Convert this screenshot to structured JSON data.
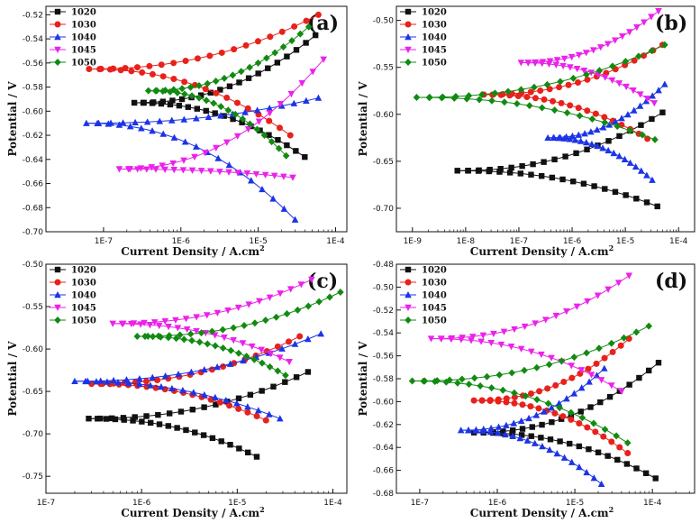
{
  "figure": {
    "series_colors": {
      "1020": "#111111",
      "1030": "#e8211b",
      "1040": "#1c34e6",
      "1045": "#ea22ea",
      "1050": "#128a12"
    },
    "series_markers": {
      "1020": "square",
      "1030": "circle",
      "1040": "triangle-up",
      "1045": "triangle-down",
      "1050": "diamond"
    }
  },
  "chart_data": [
    {
      "panel": "(a)",
      "type": "line",
      "xscale": "log",
      "xlabel": "Current Density / A.cm",
      "xlabel_superscript": "2",
      "ylabel": "Potential / V",
      "xlim": [
        1.8e-08,
        0.00014
      ],
      "ylim": [
        -0.7,
        -0.513
      ],
      "xticks": [
        1e-07,
        1e-06,
        1e-05,
        0.0001
      ],
      "xtick_labels": [
        "1E-7",
        "1E-6",
        "1E-5",
        "1E-4"
      ],
      "yticks": [
        -0.7,
        -0.68,
        -0.66,
        -0.64,
        -0.62,
        -0.6,
        -0.58,
        -0.56,
        -0.54,
        -0.52
      ],
      "ytick_labels": [
        "-0.70",
        "-0.68",
        "-0.66",
        "-0.64",
        "-0.62",
        "-0.60",
        "-0.58",
        "-0.56",
        "-0.54",
        "-0.52"
      ],
      "legend": [
        "1020",
        "1030",
        "1040",
        "1045",
        "1050"
      ],
      "series": [
        {
          "name": "1020",
          "ecorr": -0.593,
          "icorr": 2.5e-07,
          "anodic_end": [
            5.5e-05,
            -0.537
          ],
          "cathodic_end": [
            4e-05,
            -0.638
          ]
        },
        {
          "name": "1030",
          "ecorr": -0.565,
          "icorr": 6.5e-08,
          "anodic_end": [
            6e-05,
            -0.52
          ],
          "cathodic_end": [
            2.6e-05,
            -0.62
          ]
        },
        {
          "name": "1040",
          "ecorr": -0.61,
          "icorr": 6e-08,
          "anodic_end": [
            6e-05,
            -0.589
          ],
          "cathodic_end": [
            3e-05,
            -0.69
          ]
        },
        {
          "name": "1045",
          "ecorr": -0.648,
          "icorr": 1.6e-07,
          "anodic_end": [
            7e-05,
            -0.557
          ],
          "cathodic_end": [
            2.8e-05,
            -0.655
          ]
        },
        {
          "name": "1050",
          "ecorr": -0.583,
          "icorr": 3.8e-07,
          "anodic_end": [
            4.5e-05,
            -0.53
          ],
          "cathodic_end": [
            2.3e-05,
            -0.637
          ]
        }
      ]
    },
    {
      "panel": "(b)",
      "type": "line",
      "xscale": "log",
      "xlabel": "Current Density / A.cm",
      "xlabel_superscript": "2",
      "ylabel": "Potential / V",
      "xlim": [
        5e-10,
        0.0002
      ],
      "ylim": [
        -0.725,
        -0.485
      ],
      "xticks": [
        1e-09,
        1e-08,
        1e-07,
        1e-06,
        1e-05,
        0.0001
      ],
      "xtick_labels": [
        "1E-9",
        "1E-8",
        "1E-7",
        "1E-6",
        "1E-5",
        "1E-4"
      ],
      "yticks": [
        -0.7,
        -0.65,
        -0.6,
        -0.55,
        -0.5
      ],
      "ytick_labels": [
        "-0.70",
        "-0.65",
        "-0.60",
        "-0.55",
        "-0.50"
      ],
      "legend": [
        "1020",
        "1030",
        "1040",
        "1045",
        "1050"
      ],
      "series": [
        {
          "name": "1020",
          "ecorr": -0.66,
          "icorr": 7e-09,
          "anodic_end": [
            5e-05,
            -0.598
          ],
          "cathodic_end": [
            4e-05,
            -0.698
          ]
        },
        {
          "name": "1030",
          "ecorr": -0.579,
          "icorr": 2.2e-08,
          "anodic_end": [
            5e-05,
            -0.526
          ],
          "cathodic_end": [
            2.6e-05,
            -0.626
          ]
        },
        {
          "name": "1040",
          "ecorr": -0.625,
          "icorr": 3.5e-07,
          "anodic_end": [
            5.5e-05,
            -0.568
          ],
          "cathodic_end": [
            3.2e-05,
            -0.67
          ]
        },
        {
          "name": "1045",
          "ecorr": -0.545,
          "icorr": 1.1e-07,
          "anodic_end": [
            4.2e-05,
            -0.49
          ],
          "cathodic_end": [
            3.5e-05,
            -0.588
          ]
        },
        {
          "name": "1050",
          "ecorr": -0.582,
          "icorr": 1.2e-09,
          "anodic_end": [
            5.5e-05,
            -0.526
          ],
          "cathodic_end": [
            3.6e-05,
            -0.627
          ]
        }
      ]
    },
    {
      "panel": "(c)",
      "type": "line",
      "xscale": "log",
      "xlabel": "Current Density / A.cm",
      "xlabel_superscript": "2",
      "ylabel": "Potential / V",
      "xlim": [
        1e-07,
        0.00014
      ],
      "ylim": [
        -0.77,
        -0.5
      ],
      "xticks": [
        1e-07,
        1e-06,
        1e-05,
        0.0001
      ],
      "xtick_labels": [
        "1E-7",
        "1E-6",
        "1E-5",
        "1E-4"
      ],
      "yticks": [
        -0.75,
        -0.7,
        -0.65,
        -0.6,
        -0.55,
        -0.5
      ],
      "ytick_labels": [
        "-0.75",
        "-0.70",
        "-0.65",
        "-0.60",
        "-0.55",
        "-0.50"
      ],
      "legend": [
        "1020",
        "1030",
        "1040",
        "1045",
        "1050"
      ],
      "series": [
        {
          "name": "1020",
          "ecorr": -0.682,
          "icorr": 2.8e-07,
          "anodic_end": [
            5.5e-05,
            -0.627
          ],
          "cathodic_end": [
            1.6e-05,
            -0.727
          ]
        },
        {
          "name": "1030",
          "ecorr": -0.641,
          "icorr": 3e-07,
          "anodic_end": [
            4.5e-05,
            -0.585
          ],
          "cathodic_end": [
            2e-05,
            -0.684
          ]
        },
        {
          "name": "1040",
          "ecorr": -0.638,
          "icorr": 2e-07,
          "anodic_end": [
            7.5e-05,
            -0.582
          ],
          "cathodic_end": [
            2.8e-05,
            -0.682
          ]
        },
        {
          "name": "1045",
          "ecorr": -0.57,
          "icorr": 5e-07,
          "anodic_end": [
            6e-05,
            -0.518
          ],
          "cathodic_end": [
            3.5e-05,
            -0.615
          ]
        },
        {
          "name": "1050",
          "ecorr": -0.585,
          "icorr": 9e-07,
          "anodic_end": [
            0.00012,
            -0.533
          ],
          "cathodic_end": [
            3.2e-05,
            -0.631
          ]
        }
      ]
    },
    {
      "panel": "(d)",
      "type": "line",
      "xscale": "log",
      "xlabel": "Current Density / A.cm",
      "xlabel_superscript": "2",
      "ylabel": "Potential / V",
      "xlim": [
        5e-08,
        0.00035
      ],
      "ylim": [
        -0.68,
        -0.48
      ],
      "xticks": [
        1e-07,
        1e-06,
        1e-05,
        0.0001
      ],
      "xtick_labels": [
        "1E-7",
        "1E-6",
        "1E-5",
        "1E-4"
      ],
      "yticks": [
        -0.68,
        -0.66,
        -0.64,
        -0.62,
        -0.6,
        -0.58,
        -0.56,
        -0.54,
        -0.52,
        -0.5,
        -0.48
      ],
      "ytick_labels": [
        "-0.68",
        "-0.66",
        "-0.64",
        "-0.62",
        "-0.60",
        "-0.58",
        "-0.56",
        "-0.54",
        "-0.52",
        "-0.50",
        "-0.48"
      ],
      "legend": [
        "1020",
        "1030",
        "1040",
        "1045",
        "1050"
      ],
      "series": [
        {
          "name": "1020",
          "ecorr": -0.627,
          "icorr": 5e-07,
          "anodic_end": [
            0.00012,
            -0.566
          ],
          "cathodic_end": [
            0.00011,
            -0.667
          ]
        },
        {
          "name": "1030",
          "ecorr": -0.599,
          "icorr": 5e-07,
          "anodic_end": [
            5e-05,
            -0.545
          ],
          "cathodic_end": [
            4.8e-05,
            -0.645
          ]
        },
        {
          "name": "1040",
          "ecorr": -0.625,
          "icorr": 3.4e-07,
          "anodic_end": [
            2.4e-05,
            -0.571
          ],
          "cathodic_end": [
            2.2e-05,
            -0.672
          ]
        },
        {
          "name": "1045",
          "ecorr": -0.545,
          "icorr": 1.4e-07,
          "anodic_end": [
            5e-05,
            -0.49
          ],
          "cathodic_end": [
            4e-05,
            -0.591
          ]
        },
        {
          "name": "1050",
          "ecorr": -0.582,
          "icorr": 8e-08,
          "anodic_end": [
            9e-05,
            -0.534
          ],
          "cathodic_end": [
            4.8e-05,
            -0.636
          ]
        }
      ]
    }
  ]
}
